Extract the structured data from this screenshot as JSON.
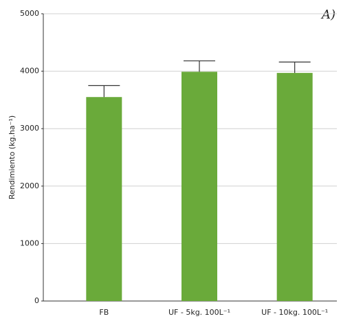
{
  "chart_data": {
    "type": "bar",
    "annotation": "A)",
    "y_label": "Rendimiento (kg.ha⁻¹)",
    "categories": [
      "FB",
      "UF - 5kg. 100L⁻¹",
      "UF - 10kg. 100L⁻¹"
    ],
    "values": [
      3550,
      3990,
      3970
    ],
    "errors": [
      200,
      190,
      190
    ],
    "color": "#6aaa3a",
    "ylim": [
      0,
      5000
    ],
    "yticks": [
      0,
      1000,
      2000,
      3000,
      4000,
      5000
    ],
    "grid": true
  }
}
